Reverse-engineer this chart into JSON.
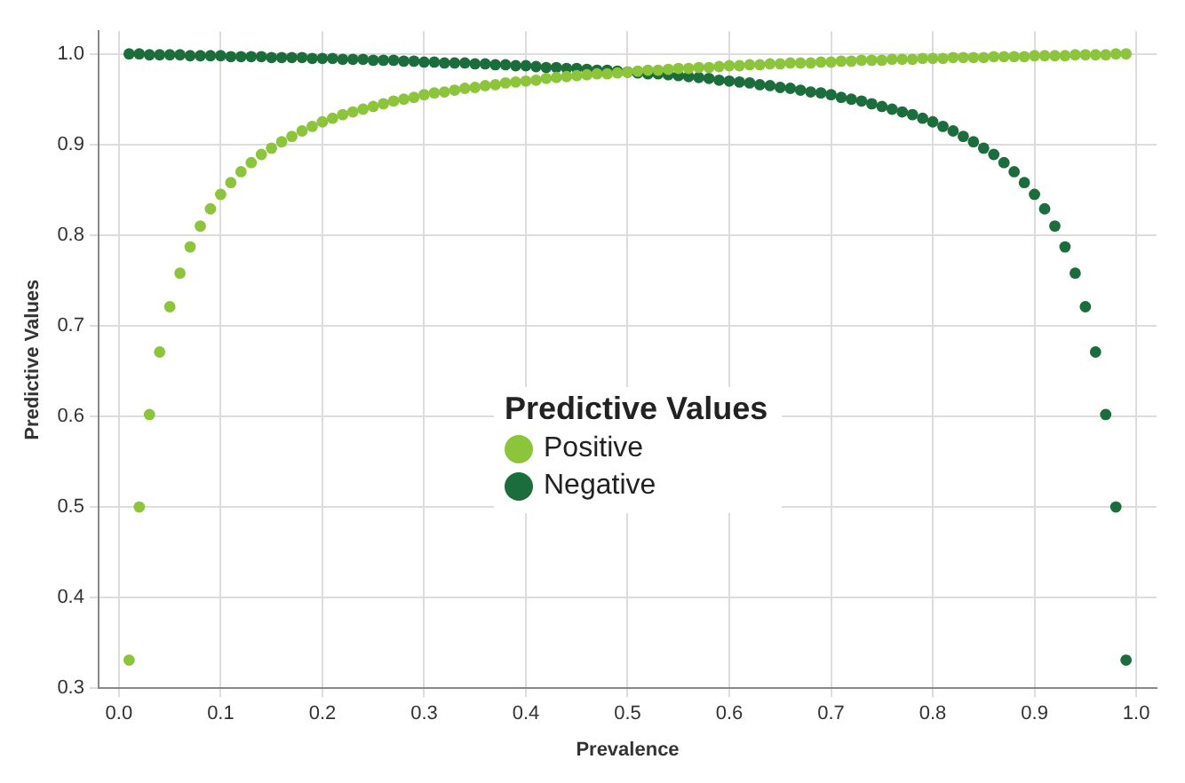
{
  "chart_data": {
    "type": "scatter",
    "xlabel": "Prevalence",
    "ylabel": "Predictive Values",
    "legend_title": "Predictive Values",
    "x": [
      0.01,
      0.02,
      0.03,
      0.04,
      0.05,
      0.06,
      0.07,
      0.08,
      0.09,
      0.1,
      0.11,
      0.12,
      0.13,
      0.14,
      0.15,
      0.16,
      0.17,
      0.18,
      0.19,
      0.2,
      0.21,
      0.22,
      0.23,
      0.24,
      0.25,
      0.26,
      0.27,
      0.28,
      0.29,
      0.3,
      0.31,
      0.32,
      0.33,
      0.34,
      0.35,
      0.36,
      0.37,
      0.38,
      0.39,
      0.4,
      0.41,
      0.42,
      0.43,
      0.44,
      0.45,
      0.46,
      0.47,
      0.48,
      0.49,
      0.5,
      0.51,
      0.52,
      0.53,
      0.54,
      0.55,
      0.56,
      0.57,
      0.58,
      0.59,
      0.6,
      0.61,
      0.62,
      0.63,
      0.64,
      0.65,
      0.66,
      0.67,
      0.68,
      0.69,
      0.7,
      0.71,
      0.72,
      0.73,
      0.74,
      0.75,
      0.76,
      0.77,
      0.78,
      0.79,
      0.8,
      0.81,
      0.82,
      0.83,
      0.84,
      0.85,
      0.86,
      0.87,
      0.88,
      0.89,
      0.9,
      0.91,
      0.92,
      0.93,
      0.94,
      0.95,
      0.96,
      0.97,
      0.98,
      0.99
    ],
    "series": [
      {
        "name": "Positive",
        "color": "#8cc43c",
        "values": [
          0.331,
          0.5,
          0.602,
          0.671,
          0.721,
          0.758,
          0.787,
          0.81,
          0.829,
          0.845,
          0.858,
          0.87,
          0.88,
          0.889,
          0.896,
          0.903,
          0.909,
          0.915,
          0.92,
          0.925,
          0.929,
          0.933,
          0.936,
          0.939,
          0.942,
          0.945,
          0.948,
          0.95,
          0.952,
          0.955,
          0.957,
          0.958,
          0.96,
          0.962,
          0.963,
          0.965,
          0.966,
          0.968,
          0.969,
          0.97,
          0.971,
          0.973,
          0.974,
          0.975,
          0.976,
          0.977,
          0.978,
          0.978,
          0.979,
          0.98,
          0.981,
          0.982,
          0.982,
          0.983,
          0.984,
          0.984,
          0.985,
          0.985,
          0.986,
          0.987,
          0.987,
          0.988,
          0.988,
          0.989,
          0.989,
          0.99,
          0.99,
          0.99,
          0.991,
          0.991,
          0.992,
          0.992,
          0.993,
          0.993,
          0.993,
          0.994,
          0.994,
          0.994,
          0.995,
          0.995,
          0.995,
          0.996,
          0.996,
          0.996,
          0.996,
          0.997,
          0.997,
          0.997,
          0.997,
          0.998,
          0.998,
          0.998,
          0.998,
          0.999,
          0.999,
          0.999,
          0.999,
          1.0,
          1.0
        ]
      },
      {
        "name": "Negative",
        "color": "#1b6e3c",
        "values": [
          1.0,
          1.0,
          0.999,
          0.999,
          0.999,
          0.999,
          0.998,
          0.998,
          0.998,
          0.998,
          0.997,
          0.997,
          0.997,
          0.997,
          0.996,
          0.996,
          0.996,
          0.996,
          0.995,
          0.995,
          0.995,
          0.994,
          0.994,
          0.994,
          0.993,
          0.993,
          0.993,
          0.992,
          0.992,
          0.991,
          0.991,
          0.99,
          0.99,
          0.99,
          0.989,
          0.989,
          0.988,
          0.988,
          0.987,
          0.987,
          0.986,
          0.985,
          0.985,
          0.984,
          0.984,
          0.983,
          0.982,
          0.982,
          0.981,
          0.98,
          0.979,
          0.978,
          0.978,
          0.977,
          0.976,
          0.975,
          0.974,
          0.973,
          0.971,
          0.97,
          0.969,
          0.968,
          0.966,
          0.965,
          0.963,
          0.962,
          0.96,
          0.958,
          0.957,
          0.955,
          0.952,
          0.95,
          0.948,
          0.945,
          0.942,
          0.939,
          0.936,
          0.933,
          0.929,
          0.925,
          0.92,
          0.915,
          0.909,
          0.903,
          0.896,
          0.889,
          0.88,
          0.87,
          0.858,
          0.845,
          0.829,
          0.81,
          0.787,
          0.758,
          0.721,
          0.671,
          0.602,
          0.5,
          0.331
        ]
      }
    ],
    "xlim": [
      -0.02,
      1.02
    ],
    "xticks": [
      {
        "value": 0,
        "label": "0.0"
      },
      0.1,
      0.2,
      0.3,
      0.4,
      0.5,
      0.6,
      0.7,
      0.8,
      0.9,
      {
        "value": 1,
        "label": "1.0"
      }
    ],
    "ylim": [
      0.3,
      1.025
    ],
    "yticks": [
      0.3,
      0.4,
      0.5,
      0.6,
      0.7,
      0.8,
      0.9,
      {
        "value": 1,
        "label": "1.0"
      }
    ],
    "grid": true,
    "legend": "center",
    "marker": "circle"
  }
}
